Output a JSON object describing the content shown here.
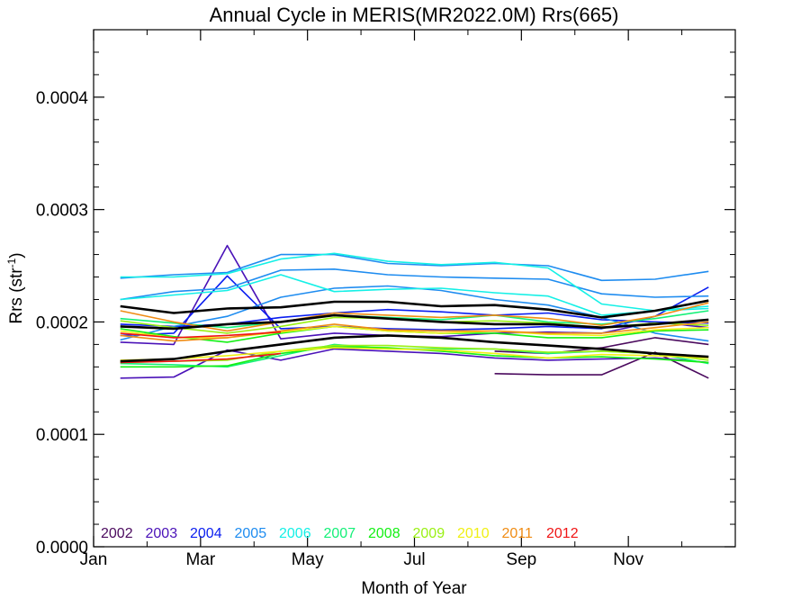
{
  "chart_data": {
    "type": "line",
    "title": "Annual Cycle in MERIS(MR2022.0M) Rrs(665)",
    "xlabel": "Month of Year",
    "ylabel_main": "Rrs (str",
    "ylabel_sup": "-1",
    "ylabel_close": ")",
    "xlim": [
      0,
      12
    ],
    "ylim": [
      0,
      0.00046
    ],
    "x_ticks": [
      {
        "value": 0,
        "label": "Jan"
      },
      {
        "value": 2,
        "label": "Mar"
      },
      {
        "value": 4,
        "label": "May"
      },
      {
        "value": 6,
        "label": "Jul"
      },
      {
        "value": 8,
        "label": "Sep"
      },
      {
        "value": 10,
        "label": "Nov"
      }
    ],
    "y_ticks": [
      {
        "value": 0,
        "label": "0.0000"
      },
      {
        "value": 0.0001,
        "label": "0.0001"
      },
      {
        "value": 0.0002,
        "label": "0.0002"
      },
      {
        "value": 0.0003,
        "label": "0.0003"
      },
      {
        "value": 0.0004,
        "label": "0.0004"
      }
    ],
    "legend_position": "bottom-left",
    "legend": [
      {
        "label": "2002",
        "color": "#4b0a5e"
      },
      {
        "label": "2003",
        "color": "#4a12b8"
      },
      {
        "label": "2004",
        "color": "#0a1ef0"
      },
      {
        "label": "2005",
        "color": "#1e8cf0"
      },
      {
        "label": "2006",
        "color": "#14f0e6"
      },
      {
        "label": "2007",
        "color": "#14f078"
      },
      {
        "label": "2008",
        "color": "#14f014"
      },
      {
        "label": "2009",
        "color": "#9af014"
      },
      {
        "label": "2010",
        "color": "#f0f014"
      },
      {
        "label": "2011",
        "color": "#f08c14"
      },
      {
        "label": "2012",
        "color": "#f01414"
      }
    ],
    "series": [
      {
        "color": "#4b0a5e",
        "width": 1.6,
        "x": [
          7.5,
          8.5,
          9.5,
          10.5,
          11.5
        ],
        "y": [
          0.000154,
          0.000153,
          0.000153,
          0.000173,
          0.00015
        ]
      },
      {
        "color": "#4b0a5e",
        "width": 1.6,
        "x": [
          7.5,
          8.5,
          9.5,
          10.5,
          11.5
        ],
        "y": [
          0.000174,
          0.000172,
          0.000177,
          0.000186,
          0.00018
        ]
      },
      {
        "color": "#4a12b8",
        "width": 1.6,
        "x": [
          0.5,
          1.5,
          2.5,
          3.5,
          4.5,
          5.5,
          6.5,
          7.5,
          8.5,
          9.5,
          10.5,
          11.5
        ],
        "y": [
          0.000182,
          0.00018,
          0.000268,
          0.000185,
          0.00019,
          0.000188,
          0.000187,
          0.00019,
          0.000191,
          0.00019,
          0.0002,
          0.000195
        ]
      },
      {
        "color": "#4a12b8",
        "width": 1.6,
        "x": [
          0.5,
          1.5,
          2.5,
          3.5,
          4.5,
          5.5,
          6.5,
          7.5,
          8.5,
          9.5,
          10.5,
          11.5
        ],
        "y": [
          0.00015,
          0.000151,
          0.000175,
          0.000166,
          0.000176,
          0.000174,
          0.000172,
          0.000168,
          0.000166,
          0.000167,
          0.000168,
          0.000164
        ]
      },
      {
        "color": "#0a1ef0",
        "width": 1.6,
        "x": [
          0.5,
          1.5,
          2.5,
          3.5,
          4.5,
          5.5,
          6.5,
          7.5,
          8.5,
          9.5,
          10.5,
          11.5
        ],
        "y": [
          0.000188,
          0.00019,
          0.000241,
          0.000194,
          0.000196,
          0.000194,
          0.000193,
          0.000194,
          0.000196,
          0.000194,
          0.000205,
          0.000231
        ]
      },
      {
        "color": "#0a1ef0",
        "width": 1.6,
        "x": [
          0.5,
          1.5,
          2.5,
          3.5,
          4.5,
          5.5,
          6.5,
          7.5,
          8.5,
          9.5,
          10.5,
          11.5
        ],
        "y": [
          0.000198,
          0.000196,
          0.000198,
          0.000204,
          0.000208,
          0.000211,
          0.000209,
          0.000206,
          0.000208,
          0.000202,
          0.0002,
          0.000199
        ]
      },
      {
        "color": "#1e8cf0",
        "width": 1.6,
        "x": [
          0.5,
          1.5,
          2.5,
          3.5,
          4.5,
          5.5,
          6.5,
          7.5,
          8.5,
          9.5,
          10.5,
          11.5
        ],
        "y": [
          0.000239,
          0.000242,
          0.000244,
          0.00026,
          0.00026,
          0.000252,
          0.00025,
          0.000252,
          0.00025,
          0.000237,
          0.000238,
          0.000245
        ]
      },
      {
        "color": "#1e8cf0",
        "width": 1.6,
        "x": [
          0.5,
          1.5,
          2.5,
          3.5,
          4.5,
          5.5,
          6.5,
          7.5,
          8.5,
          9.5,
          10.5,
          11.5
        ],
        "y": [
          0.00022,
          0.000227,
          0.00023,
          0.000246,
          0.000247,
          0.000242,
          0.00024,
          0.000239,
          0.000238,
          0.000225,
          0.000222,
          0.000223
        ]
      },
      {
        "color": "#1e8cf0",
        "width": 1.6,
        "x": [
          0.5,
          1.5,
          2.5,
          3.5,
          4.5,
          5.5,
          6.5,
          7.5,
          8.5,
          9.5,
          10.5,
          11.5
        ],
        "y": [
          0.000184,
          0.000196,
          0.000205,
          0.000222,
          0.00023,
          0.000232,
          0.000228,
          0.00022,
          0.000215,
          0.000204,
          0.00019,
          0.000183
        ]
      },
      {
        "color": "#14f0e6",
        "width": 1.6,
        "x": [
          0.5,
          1.5,
          2.5,
          3.5,
          4.5,
          5.5,
          6.5,
          7.5,
          8.5,
          9.5,
          10.5,
          11.5
        ],
        "y": [
          0.00024,
          0.00024,
          0.000243,
          0.000256,
          0.000261,
          0.000254,
          0.000251,
          0.000253,
          0.000248,
          0.000216,
          0.00021,
          0.000212
        ]
      },
      {
        "color": "#14f0e6",
        "width": 1.6,
        "x": [
          0.5,
          1.5,
          2.5,
          3.5,
          4.5,
          5.5,
          6.5,
          7.5,
          8.5,
          9.5,
          10.5,
          11.5
        ],
        "y": [
          0.00022,
          0.000224,
          0.000228,
          0.000242,
          0.000227,
          0.000229,
          0.00023,
          0.000226,
          0.000223,
          0.000206,
          0.00021,
          0.000214
        ]
      },
      {
        "color": "#14f078",
        "width": 1.6,
        "x": [
          0.5,
          1.5,
          2.5,
          3.5,
          4.5,
          5.5,
          6.5,
          7.5,
          8.5,
          9.5,
          10.5,
          11.5
        ],
        "y": [
          0.000203,
          0.000199,
          0.000195,
          0.0002,
          0.000206,
          0.000204,
          0.000202,
          0.000206,
          0.0002,
          0.000198,
          0.000203,
          0.00021
        ]
      },
      {
        "color": "#14f078",
        "width": 1.6,
        "x": [
          0.5,
          1.5,
          2.5,
          3.5,
          4.5,
          5.5,
          6.5,
          7.5,
          8.5,
          9.5,
          10.5,
          11.5
        ],
        "y": [
          0.000163,
          0.000162,
          0.00016,
          0.00017,
          0.00018,
          0.000176,
          0.000176,
          0.000176,
          0.000172,
          0.000174,
          0.000172,
          0.000163
        ]
      },
      {
        "color": "#14f014",
        "width": 1.6,
        "x": [
          0.5,
          1.5,
          2.5,
          3.5,
          4.5,
          5.5,
          6.5,
          7.5,
          8.5,
          9.5,
          10.5,
          11.5
        ],
        "y": [
          0.000194,
          0.000187,
          0.000182,
          0.00019,
          0.000196,
          0.000192,
          0.00019,
          0.00019,
          0.000186,
          0.000186,
          0.000192,
          0.000193
        ]
      },
      {
        "color": "#14f014",
        "width": 1.6,
        "x": [
          0.5,
          1.5,
          2.5,
          3.5,
          4.5,
          5.5,
          6.5,
          7.5,
          8.5,
          9.5,
          10.5,
          11.5
        ],
        "y": [
          0.00016,
          0.00016,
          0.000161,
          0.000172,
          0.000178,
          0.000177,
          0.000174,
          0.00017,
          0.000168,
          0.000169,
          0.000167,
          0.000164
        ]
      },
      {
        "color": "#9af014",
        "width": 1.6,
        "x": [
          0.5,
          1.5,
          2.5,
          3.5,
          4.5,
          5.5,
          6.5,
          7.5,
          8.5,
          9.5,
          10.5,
          11.5
        ],
        "y": [
          0.000201,
          0.000195,
          0.00019,
          0.000196,
          0.000204,
          0.000203,
          0.0002,
          0.000201,
          0.000199,
          0.000195,
          0.000199,
          0.000197
        ]
      },
      {
        "color": "#9af014",
        "width": 1.6,
        "x": [
          0.5,
          1.5,
          2.5,
          3.5,
          4.5,
          5.5,
          6.5,
          7.5,
          8.5,
          9.5,
          10.5,
          11.5
        ],
        "y": [
          0.000164,
          0.000165,
          0.000166,
          0.000174,
          0.000179,
          0.000179,
          0.000177,
          0.000176,
          0.000173,
          0.000174,
          0.000172,
          0.000166
        ]
      },
      {
        "color": "#f0f014",
        "width": 1.6,
        "x": [
          0.5,
          1.5,
          2.5,
          3.5,
          4.5,
          5.5,
          6.5,
          7.5,
          8.5,
          9.5,
          10.5,
          11.5
        ],
        "y": [
          0.000192,
          0.000186,
          0.000186,
          0.000191,
          0.000196,
          0.000192,
          0.00019,
          0.000192,
          0.000189,
          0.000188,
          0.000193,
          0.000195
        ]
      },
      {
        "color": "#f0f014",
        "width": 1.6,
        "x": [
          0.5,
          1.5,
          2.5,
          3.5,
          4.5,
          5.5,
          6.5,
          7.5,
          8.5,
          9.5,
          10.5,
          11.5
        ],
        "y": [
          0.000166,
          0.000167,
          0.00017,
          0.000174,
          0.000177,
          0.000176,
          0.000175,
          0.000172,
          0.000168,
          0.000171,
          0.00017,
          0.000168
        ]
      },
      {
        "color": "#f08c14",
        "width": 1.6,
        "x": [
          0.5,
          1.5,
          2.5,
          3.5,
          4.5,
          5.5,
          6.5,
          7.5,
          8.5,
          9.5,
          10.5,
          11.5
        ],
        "y": [
          0.00021,
          0.0002,
          0.000192,
          0.0002,
          0.000208,
          0.000206,
          0.000204,
          0.000206,
          0.000203,
          0.000197,
          0.000205,
          0.000217
        ]
      },
      {
        "color": "#f08c14",
        "width": 1.6,
        "x": [
          0.5,
          1.5,
          2.5,
          3.5,
          4.5,
          5.5,
          6.5,
          7.5,
          8.5,
          9.5,
          10.5,
          11.5
        ],
        "y": [
          0.000188,
          0.000183,
          0.000186,
          0.000192,
          0.000198,
          0.000193,
          0.000192,
          0.000192,
          0.00019,
          0.00019,
          0.000195,
          0.0002
        ]
      },
      {
        "color": "#f01414",
        "width": 1.6,
        "x": [
          0.5,
          1.5,
          2.5,
          3.5
        ],
        "y": [
          0.00019,
          0.000186,
          0.000188,
          0.000191
        ]
      },
      {
        "color": "#f01414",
        "width": 1.6,
        "x": [
          0.5,
          1.5,
          2.5,
          3.5
        ],
        "y": [
          0.000164,
          0.000165,
          0.000167,
          0.000172
        ]
      },
      {
        "color": "#000000",
        "width": 2.6,
        "x": [
          0.5,
          1.5,
          2.5,
          3.5,
          4.5,
          5.5,
          6.5,
          7.5,
          8.5,
          9.5,
          10.5,
          11.5
        ],
        "y": [
          0.000214,
          0.000208,
          0.000212,
          0.000213,
          0.000218,
          0.000218,
          0.000214,
          0.000215,
          0.000211,
          0.000204,
          0.00021,
          0.000219
        ]
      },
      {
        "color": "#000000",
        "width": 2.6,
        "x": [
          0.5,
          1.5,
          2.5,
          3.5,
          4.5,
          5.5,
          6.5,
          7.5,
          8.5,
          9.5,
          10.5,
          11.5
        ],
        "y": [
          0.000196,
          0.000194,
          0.000198,
          0.0002,
          0.000206,
          0.000203,
          0.0002,
          0.000198,
          0.000198,
          0.000195,
          0.000198,
          0.000202
        ]
      },
      {
        "color": "#000000",
        "width": 2.6,
        "x": [
          0.5,
          1.5,
          2.5,
          3.5,
          4.5,
          5.5,
          6.5,
          7.5,
          8.5,
          9.5,
          10.5,
          11.5
        ],
        "y": [
          0.000165,
          0.000167,
          0.000174,
          0.00018,
          0.000186,
          0.000188,
          0.000186,
          0.000182,
          0.000179,
          0.000176,
          0.000172,
          0.000169
        ]
      }
    ]
  }
}
